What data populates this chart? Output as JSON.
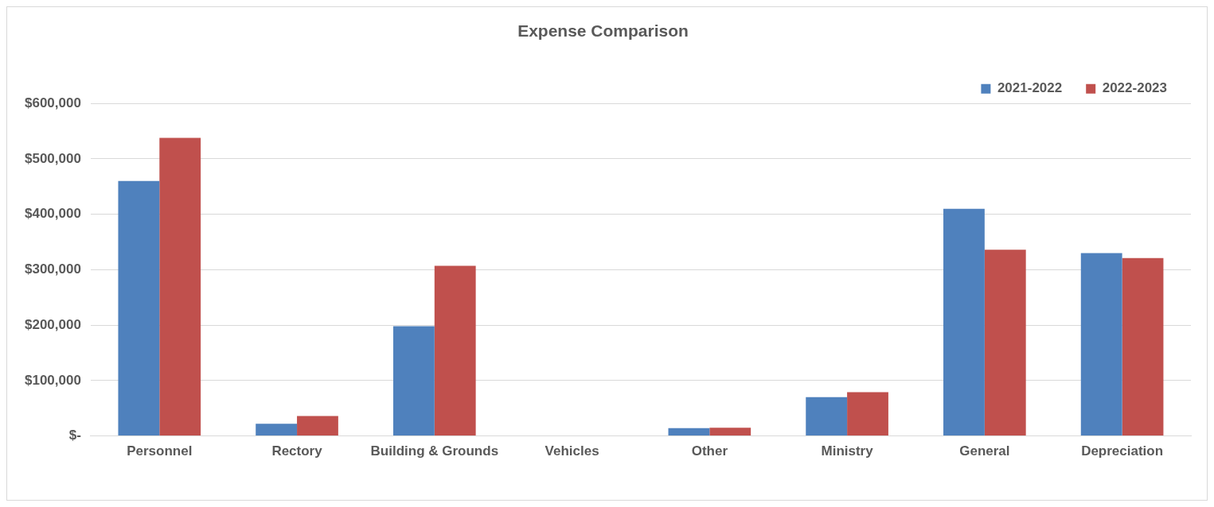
{
  "chart_data": {
    "type": "bar",
    "title": "Expense Comparison",
    "categories": [
      "Personnel",
      "Rectory",
      "Building & Grounds",
      "Vehicles",
      "Other",
      "Ministry",
      "General",
      "Depreciation"
    ],
    "series": [
      {
        "name": "2021-2022",
        "color": "#4f81bd",
        "values": [
          460000,
          22000,
          198000,
          0,
          14000,
          70000,
          410000,
          330000
        ]
      },
      {
        "name": "2022-2023",
        "color": "#c0504d",
        "values": [
          538000,
          36000,
          307000,
          0,
          15000,
          79000,
          336000,
          321000
        ]
      }
    ],
    "ylim": [
      0,
      600000
    ],
    "yticks": [
      {
        "value": 0,
        "label": "$-"
      },
      {
        "value": 100000,
        "label": "$100,000"
      },
      {
        "value": 200000,
        "label": "$200,000"
      },
      {
        "value": 300000,
        "label": "$300,000"
      },
      {
        "value": 400000,
        "label": "$400,000"
      },
      {
        "value": 500000,
        "label": "$500,000"
      },
      {
        "value": 600000,
        "label": "$600,000"
      }
    ],
    "grid": "y",
    "legend": "top right"
  }
}
